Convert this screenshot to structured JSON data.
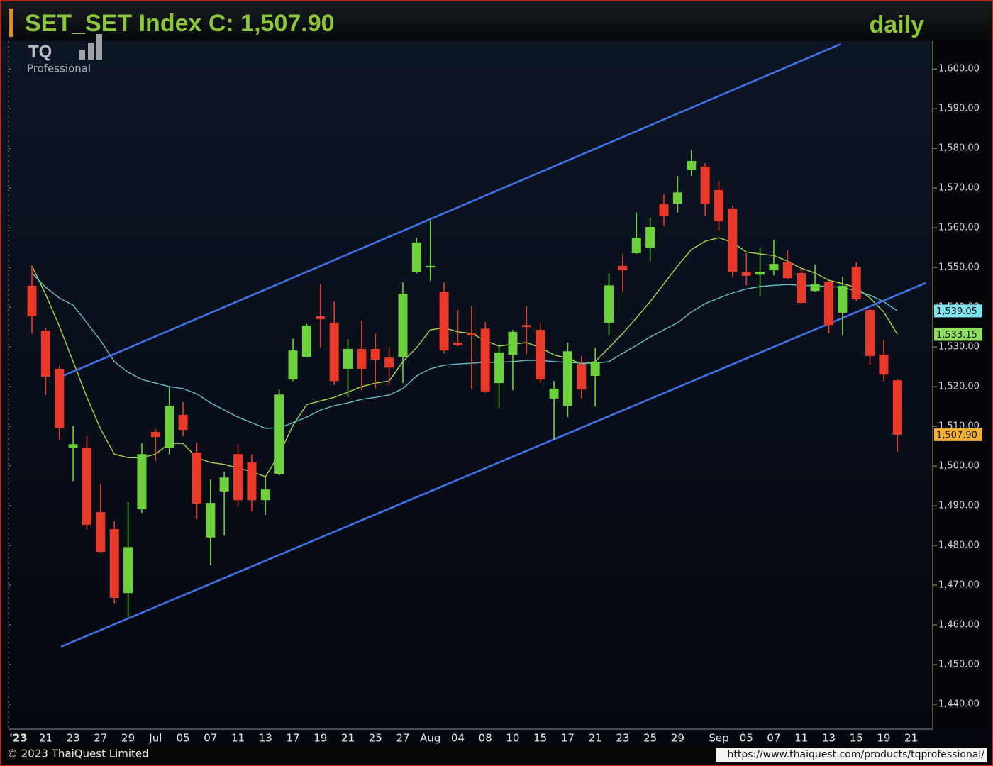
{
  "chart_data": {
    "type": "candlestick",
    "title": "SET_SET Index C: 1,507.90",
    "period": "daily",
    "x_start_label": "'23",
    "categories": [
      null,
      "21",
      null,
      "23",
      null,
      "27",
      null,
      "29",
      null,
      "Jul",
      null,
      "05",
      null,
      "07",
      null,
      "11",
      null,
      "13",
      null,
      "17",
      null,
      "19",
      null,
      "21",
      null,
      "25",
      null,
      "27",
      null,
      "Aug",
      null,
      "04",
      null,
      "08",
      null,
      "10",
      null,
      "15",
      null,
      "17",
      null,
      "21",
      null,
      "23",
      null,
      "25",
      null,
      "29",
      null,
      null,
      "Sep",
      null,
      "05",
      null,
      "07",
      null,
      "11",
      null,
      "13",
      null,
      "15",
      null,
      "19",
      null,
      "21"
    ],
    "open": [
      1545.4,
      1534.1,
      1524.5,
      1504.5,
      1504.6,
      1488.4,
      1484.1,
      1468.0,
      1489.1,
      1508.6,
      1504.5,
      1512.9,
      1503.4,
      1482.0,
      1493.6,
      1503.0,
      1500.9,
      1491.4,
      1498.0,
      1521.8,
      1527.5,
      1537.7,
      1536.1,
      1524.5,
      1529.5,
      1529.5,
      1527.3,
      1527.5,
      1548.8,
      1550.0,
      1543.9,
      1531.1,
      1533.4,
      1534.6,
      1520.9,
      1528.0,
      1535.5,
      1534.3,
      1517.0,
      1515.2,
      1525.7,
      1522.7,
      1536.1,
      1550.4,
      1553.6,
      1555.0,
      1565.9,
      1566.1,
      1574.5,
      1575.4,
      1569.5,
      1564.8,
      1548.9,
      1548.2,
      1549.3,
      1551.3,
      1548.6,
      1544.1,
      1546.4,
      1538.6,
      1550.2,
      1539.3,
      1528.0,
      1521.6,
      null
    ],
    "high": [
      1550.5,
      1534.8,
      1525.2,
      1510.2,
      1507.5,
      1495.5,
      1486.1,
      1490.9,
      1505.7,
      1509.3,
      1520.0,
      1516.1,
      1505.9,
      1496.6,
      1498.6,
      1505.5,
      1502.9,
      1497.3,
      1519.3,
      1532.1,
      1535.8,
      1545.9,
      1541.4,
      1532.0,
      1536.6,
      1533.4,
      1530.0,
      1546.3,
      1557.5,
      1561.8,
      1546.3,
      1539.3,
      1540.2,
      1536.3,
      1530.7,
      1534.3,
      1540.2,
      1535.9,
      1521.4,
      1531.1,
      1527.7,
      1529.8,
      1548.6,
      1553.4,
      1563.8,
      1562.5,
      1568.4,
      1573.0,
      1579.6,
      1576.3,
      1571.8,
      1565.5,
      1553.6,
      1555.0,
      1557.0,
      1554.5,
      1549.8,
      1550.7,
      1546.6,
      1547.7,
      1551.3,
      1539.6,
      1531.6,
      1521.9,
      null
    ],
    "low": [
      1533.4,
      1517.9,
      1506.6,
      1496.2,
      1484.1,
      1478.0,
      1465.4,
      1462.0,
      1488.2,
      1501.3,
      1502.9,
      1507.5,
      1486.6,
      1475.0,
      1482.5,
      1490.0,
      1488.6,
      1487.7,
      1497.6,
      1521.4,
      1527.3,
      1529.8,
      1520.4,
      1517.3,
      1519.1,
      1519.6,
      1520.2,
      1520.9,
      1548.5,
      1546.6,
      1528.4,
      1530.2,
      1519.5,
      1518.5,
      1514.6,
      1519.1,
      1528.2,
      1520.9,
      1506.6,
      1512.3,
      1517.0,
      1515.0,
      1532.9,
      1543.8,
      1553.4,
      1551.6,
      1560.5,
      1563.8,
      1573.0,
      1563.0,
      1559.3,
      1547.7,
      1545.5,
      1542.9,
      1548.0,
      1547.0,
      1540.8,
      1543.9,
      1533.4,
      1532.9,
      1541.6,
      1525.4,
      1521.4,
      1503.6,
      null
    ],
    "close": [
      1537.7,
      1522.5,
      1509.6,
      1505.5,
      1485.2,
      1478.4,
      1466.8,
      1479.6,
      1503.0,
      1507.3,
      1515.2,
      1509.1,
      1490.5,
      1490.7,
      1497.1,
      1491.4,
      1491.4,
      1494.1,
      1518.0,
      1529.1,
      1535.4,
      1537.0,
      1521.4,
      1529.5,
      1524.5,
      1526.8,
      1524.8,
      1543.4,
      1556.3,
      1550.4,
      1529.1,
      1530.5,
      1532.9,
      1518.8,
      1528.6,
      1533.8,
      1535.0,
      1521.8,
      1519.5,
      1528.9,
      1519.3,
      1526.2,
      1545.5,
      1549.3,
      1557.5,
      1560.2,
      1563.0,
      1568.9,
      1576.8,
      1565.9,
      1561.6,
      1548.9,
      1547.9,
      1548.9,
      1550.9,
      1547.3,
      1541.1,
      1545.9,
      1535.5,
      1545.4,
      1542.0,
      1527.7,
      1523.0,
      1507.9,
      null
    ],
    "close_label": "1,507.90",
    "up_color": "#6cd13c",
    "down_color": "#e8392a",
    "label_color": "#f2b233",
    "lines": [
      {
        "color": "#a6d94a",
        "label_color": "#8fe05a",
        "last_label": "1,533.15",
        "values": [
          1550.4,
          1543.2,
          1535.2,
          1526.3,
          1517.3,
          1509.3,
          1503,
          1502.1,
          1502.1,
          1503,
          1505.7,
          1505.7,
          1502.1,
          1500.9,
          1500.4,
          1499.5,
          1498.6,
          1497.3,
          1503,
          1510.2,
          1515.5,
          1516.4,
          1517.3,
          1518.6,
          1520,
          1520.9,
          1521.4,
          1526.3,
          1529.8,
          1534.3,
          1534.8,
          1533.8,
          1533.4,
          1531.6,
          1530.2,
          1530.7,
          1531.1,
          1529.8,
          1528,
          1527.1,
          1525.7,
          1526.3,
          1529.8,
          1533.4,
          1537.3,
          1541.4,
          1545.9,
          1550.4,
          1554.5,
          1556.6,
          1557.5,
          1556.3,
          1553.9,
          1553.4,
          1553,
          1551.6,
          1549.8,
          1548.6,
          1546.8,
          1545.9,
          1545,
          1542.3,
          1538.8,
          1533.15,
          null
        ]
      },
      {
        "color": "#67bfc4",
        "label_color": "#7fe6ef",
        "last_label": "1,539.05",
        "values": [
          1548.6,
          1545.0,
          1542.3,
          1540.5,
          1536.1,
          1531.6,
          1526.3,
          1523.6,
          1521.8,
          1520.9,
          1520,
          1519.5,
          1518.2,
          1515.9,
          1514.1,
          1512.3,
          1510.9,
          1509.5,
          1509.6,
          1510.9,
          1512.3,
          1514.1,
          1515.2,
          1515.9,
          1516.8,
          1517.3,
          1517.9,
          1519.5,
          1522.7,
          1524.5,
          1525.4,
          1525.7,
          1525.9,
          1526.1,
          1526.1,
          1526.3,
          1526.6,
          1526.6,
          1526.3,
          1526.1,
          1525.9,
          1525.9,
          1526.3,
          1528.4,
          1530.4,
          1532.5,
          1534.3,
          1536.1,
          1538.8,
          1540.9,
          1542.3,
          1543.6,
          1544.6,
          1545.2,
          1545.5,
          1545.7,
          1545.5,
          1545.4,
          1545.2,
          1545.0,
          1544.1,
          1543.0,
          1541.4,
          1539.05,
          null
        ]
      }
    ],
    "trendlines": [
      {
        "color": "#3f73e8",
        "x": [
          2.12,
          58.85
        ],
        "y": [
          1522.5,
          1606.25
        ]
      },
      {
        "color": "#3f73e8",
        "x": [
          2.12,
          65.05
        ],
        "y": [
          1454.5,
          1546.1
        ]
      }
    ],
    "ylim": [
      1433.75,
      1607.0
    ],
    "yticks": [
      {
        "value": 1440,
        "label": "1,440.00"
      },
      {
        "value": 1450,
        "label": "1,450.00"
      },
      {
        "value": 1460,
        "label": "1,460.00"
      },
      {
        "value": 1470,
        "label": "1,470.00"
      },
      {
        "value": 1480,
        "label": "1,480.00"
      },
      {
        "value": 1490,
        "label": "1,490.00"
      },
      {
        "value": 1500,
        "label": "1,500.00"
      },
      {
        "value": 1510,
        "label": "1,510.00"
      },
      {
        "value": 1520,
        "label": "1,520.00"
      },
      {
        "value": 1530,
        "label": "1,530.00"
      },
      {
        "value": 1540,
        "label": "1,540.00"
      },
      {
        "value": 1550,
        "label": "1,550.00"
      },
      {
        "value": 1560,
        "label": "1,560.00"
      },
      {
        "value": 1570,
        "label": "1,570.00"
      },
      {
        "value": 1580,
        "label": "1,580.00"
      },
      {
        "value": 1590,
        "label": "1,590.00"
      },
      {
        "value": 1600,
        "label": "1,600.00"
      }
    ],
    "grid": false
  },
  "logo": {
    "text": "TQ",
    "subtitle": "Professional"
  },
  "footer": {
    "copyright": "© 2023 ThaiQuest Limited",
    "url": "https://www.thaiquest.com/products/tqprofessional/"
  }
}
